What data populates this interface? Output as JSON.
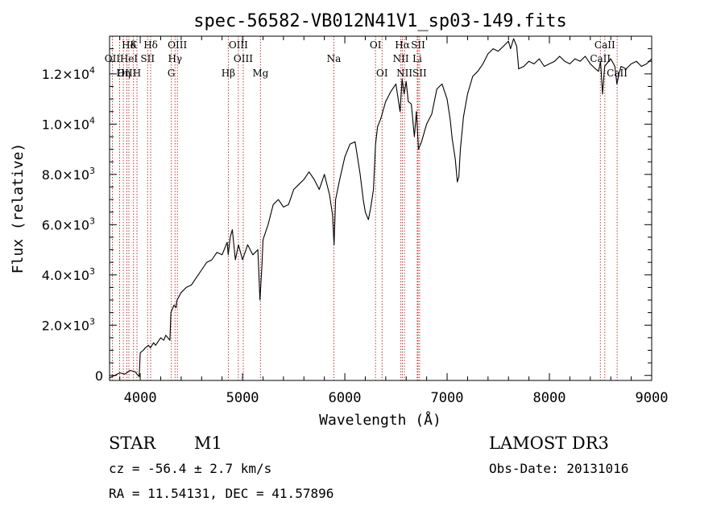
{
  "chart_data": {
    "type": "line",
    "title": "spec-56582-VB012N41V1_sp03-149.fits",
    "xlabel": "Wavelength (Å)",
    "ylabel": "Flux (relative)",
    "xlim": [
      3700,
      9000
    ],
    "ylim": [
      -200,
      13500
    ],
    "xticks": [
      {
        "value": 4000,
        "label": "4000"
      },
      {
        "value": 5000,
        "label": "5000"
      },
      {
        "value": 6000,
        "label": "6000"
      },
      {
        "value": 7000,
        "label": "7000"
      },
      {
        "value": 8000,
        "label": "8000"
      },
      {
        "value": 9000,
        "label": "9000"
      }
    ],
    "yticks": [
      {
        "value": 0,
        "mant": "0",
        "exp": ""
      },
      {
        "value": 2000,
        "mant": "2.0×10",
        "exp": "3"
      },
      {
        "value": 4000,
        "mant": "4.0×10",
        "exp": "3"
      },
      {
        "value": 6000,
        "mant": "6.0×10",
        "exp": "3"
      },
      {
        "value": 8000,
        "mant": "8.0×10",
        "exp": "3"
      },
      {
        "value": 10000,
        "mant": "1.0×10",
        "exp": "4"
      },
      {
        "value": 12000,
        "mant": "1.2×10",
        "exp": "4"
      }
    ],
    "grid": false,
    "series": [
      {
        "color": "#000000",
        "x": [
          3700,
          3750,
          3800,
          3850,
          3900,
          3950,
          3990,
          4000,
          4030,
          4050,
          4080,
          4100,
          4130,
          4150,
          4200,
          4230,
          4250,
          4290,
          4300,
          4330,
          4350,
          4360,
          4400,
          4450,
          4500,
          4550,
          4600,
          4650,
          4700,
          4750,
          4800,
          4850,
          4860,
          4880,
          4900,
          4930,
          4950,
          4960,
          5000,
          5050,
          5100,
          5150,
          5170,
          5190,
          5200,
          5250,
          5300,
          5350,
          5400,
          5450,
          5500,
          5550,
          5600,
          5650,
          5700,
          5750,
          5800,
          5850,
          5880,
          5895,
          5910,
          5950,
          6000,
          6050,
          6100,
          6150,
          6180,
          6200,
          6230,
          6250,
          6280,
          6300,
          6320,
          6350,
          6400,
          6450,
          6500,
          6540,
          6560,
          6580,
          6600,
          6620,
          6650,
          6680,
          6700,
          6720,
          6750,
          6800,
          6850,
          6900,
          6950,
          7000,
          7030,
          7050,
          7080,
          7100,
          7115,
          7130,
          7160,
          7200,
          7250,
          7300,
          7350,
          7400,
          7450,
          7500,
          7550,
          7600,
          7620,
          7650,
          7680,
          7700,
          7750,
          7800,
          7850,
          7900,
          7950,
          8000,
          8050,
          8100,
          8150,
          8200,
          8250,
          8300,
          8350,
          8400,
          8450,
          8480,
          8500,
          8520,
          8540,
          8560,
          8600,
          8640,
          8660,
          8680,
          8700,
          8750,
          8800,
          8850,
          8900,
          8950,
          9000
        ],
        "y": [
          -100,
          0,
          100,
          50,
          200,
          150,
          -50,
          900,
          1000,
          1100,
          1200,
          1100,
          1300,
          1200,
          1500,
          1400,
          1600,
          1400,
          2500,
          2800,
          2700,
          3000,
          3300,
          3500,
          3600,
          3900,
          4200,
          4500,
          4600,
          4900,
          4800,
          5300,
          4800,
          5500,
          5800,
          4600,
          5000,
          5200,
          4600,
          5200,
          4800,
          5000,
          3000,
          4400,
          5400,
          6000,
          6800,
          7000,
          6700,
          6800,
          7400,
          7600,
          7800,
          8100,
          7800,
          7400,
          8000,
          7200,
          6400,
          5200,
          7000,
          7800,
          8700,
          9200,
          9300,
          8000,
          7000,
          6500,
          6200,
          6600,
          7400,
          9200,
          9900,
          10200,
          10900,
          11300,
          11600,
          10500,
          11800,
          11200,
          11700,
          10900,
          10800,
          9500,
          10500,
          9000,
          9300,
          10000,
          10400,
          11400,
          11600,
          11000,
          10200,
          9400,
          8600,
          7700,
          7900,
          9000,
          10300,
          11200,
          11900,
          12100,
          12400,
          12800,
          13000,
          12900,
          13100,
          13300,
          13000,
          13400,
          13100,
          12200,
          12300,
          12500,
          12400,
          12600,
          12300,
          12400,
          12500,
          12700,
          12500,
          12400,
          12600,
          12500,
          12700,
          12400,
          12200,
          12100,
          12500,
          11200,
          12300,
          12400,
          12600,
          12300,
          11600,
          12000,
          12300,
          12200,
          12400,
          12500,
          12300,
          12400,
          12600
        ]
      }
    ],
    "annotations": [
      {
        "label": "Hδ",
        "x": 3889,
        "row": 1
      },
      {
        "label": "K",
        "x": 3934,
        "row": 1
      },
      {
        "label": "Hδ",
        "x": 4102,
        "row": 1
      },
      {
        "label": "OIII",
        "x": 4363,
        "row": 1
      },
      {
        "label": "OIII",
        "x": 4959,
        "row": 1
      },
      {
        "label": "OI",
        "x": 6300,
        "row": 1
      },
      {
        "label": "Hα",
        "x": 6563,
        "row": 1
      },
      {
        "label": "SII",
        "x": 6716,
        "row": 1
      },
      {
        "label": "CaII",
        "x": 8542,
        "row": 1
      },
      {
        "label": "OII",
        "x": 3727,
        "row": 2
      },
      {
        "label": "HeI",
        "x": 3889,
        "row": 2
      },
      {
        "label": "SII",
        "x": 4072,
        "row": 2
      },
      {
        "label": "Hγ",
        "x": 4340,
        "row": 2
      },
      {
        "label": "OIII",
        "x": 5007,
        "row": 2
      },
      {
        "label": "Na",
        "x": 5893,
        "row": 2
      },
      {
        "label": "NII",
        "x": 6548,
        "row": 2
      },
      {
        "label": "Li",
        "x": 6708,
        "row": 2
      },
      {
        "label": "CaII",
        "x": 8498,
        "row": 2
      },
      {
        "label": "OIII",
        "x": 3869,
        "row": 3
      },
      {
        "label": "Hη",
        "x": 3835,
        "row": 3
      },
      {
        "label": "H",
        "x": 3968,
        "row": 3
      },
      {
        "label": "G",
        "x": 4304,
        "row": 3
      },
      {
        "label": "Hβ",
        "x": 4861,
        "row": 3
      },
      {
        "label": "Mg",
        "x": 5175,
        "row": 3
      },
      {
        "label": "OI",
        "x": 6364,
        "row": 3
      },
      {
        "label": "NII",
        "x": 6583,
        "row": 3
      },
      {
        "label": "SII",
        "x": 6731,
        "row": 3
      },
      {
        "label": "CaII",
        "x": 8662,
        "row": 3
      }
    ],
    "line_markers": [
      3727,
      3798,
      3835,
      3869,
      3889,
      3934,
      3968,
      4072,
      4102,
      4304,
      4340,
      4363,
      4861,
      4959,
      5007,
      5175,
      5893,
      6300,
      6364,
      6548,
      6563,
      6583,
      6708,
      6716,
      6731,
      8498,
      8542,
      8662
    ]
  },
  "info": {
    "object_class": "STAR",
    "subclass": "M1",
    "survey": "LAMOST DR3",
    "velocity": "cz = -56.4 ± 2.7 km/s",
    "obs_date": "Obs-Date: 20131016",
    "coords": "RA =  11.54131, DEC =  41.57896"
  }
}
